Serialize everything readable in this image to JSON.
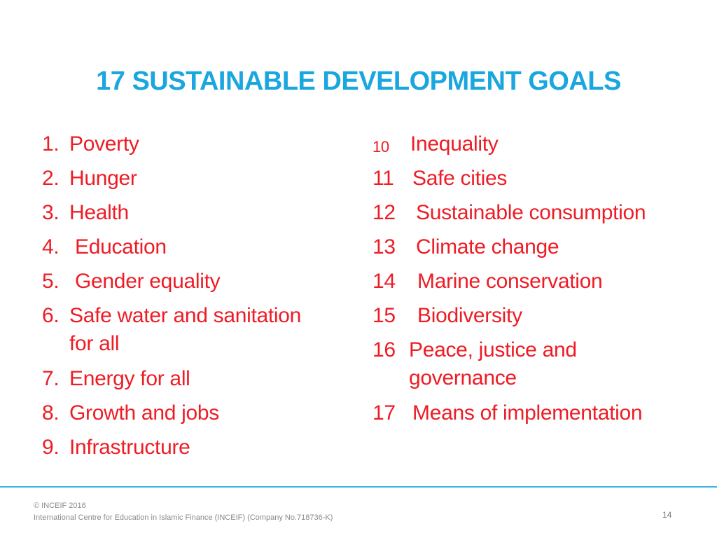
{
  "colors": {
    "title": "#1aa6df",
    "goal_text": "#ee1c25",
    "divider": "#3fb4e6"
  },
  "title": "17 SUSTAINABLE DEVELOPMENT GOALS",
  "goals_left": [
    {
      "num": "1.",
      "text": "Poverty"
    },
    {
      "num": "2.",
      "text": "Hunger"
    },
    {
      "num": "3.",
      "text": "Health"
    },
    {
      "num": "4.",
      "text": "Education"
    },
    {
      "num": "5.",
      "text": "Gender equality"
    },
    {
      "num": "6.",
      "text": "Safe water and sanitation for all"
    },
    {
      "num": "7.",
      "text": "Energy for all"
    },
    {
      "num": "8.",
      "text": "Growth and jobs"
    },
    {
      "num": "9.",
      "text": "Infrastructure"
    }
  ],
  "goals_right": [
    {
      "num": "10",
      "text": "Inequality"
    },
    {
      "num": "11",
      "text": "Safe cities"
    },
    {
      "num": "12",
      "text": "Sustainable consumption"
    },
    {
      "num": "13",
      "text": "Climate change"
    },
    {
      "num": "14",
      "text": "Marine conservation"
    },
    {
      "num": "15",
      "text": "Biodiversity"
    },
    {
      "num": "16",
      "text": "Peace, justice and governance"
    },
    {
      "num": "17",
      "text": "Means of implementation"
    }
  ],
  "footer": {
    "copyright": "© INCEIF 2016",
    "organization": "International Centre for Education in Islamic Finance (INCEIF) (Company No.718736-K)",
    "page_number": "14"
  }
}
